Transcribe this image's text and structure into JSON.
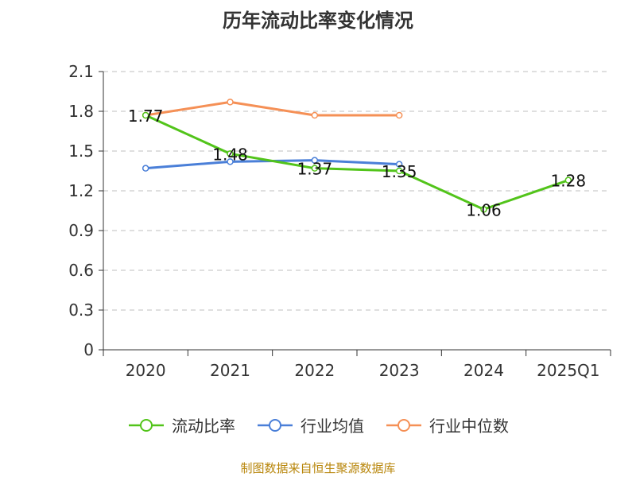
{
  "chart_data": {
    "type": "line",
    "title": "历年流动比率变化情况",
    "categories": [
      "2020",
      "2021",
      "2022",
      "2023",
      "2024",
      "2025Q1"
    ],
    "ylim": [
      0,
      2.1
    ],
    "yticks": [
      "0",
      "0.3",
      "0.6",
      "0.9",
      "1.2",
      "1.5",
      "1.8",
      "2.1"
    ],
    "grid": true,
    "legend_position": "bottom",
    "series": [
      {
        "name": "流动比率",
        "color": "#52c41a",
        "values": [
          1.77,
          1.48,
          1.37,
          1.35,
          1.06,
          1.28
        ],
        "labels": [
          "1.77",
          "1.48",
          "1.37",
          "1.35",
          "1.06",
          "1.28"
        ]
      },
      {
        "name": "行业均值",
        "color": "#4a7fd8",
        "values": [
          1.37,
          1.42,
          1.43,
          1.4,
          null,
          null
        ]
      },
      {
        "name": "行业中位数",
        "color": "#f59056",
        "values": [
          1.77,
          1.87,
          1.77,
          1.77,
          null,
          null
        ]
      }
    ]
  },
  "source": "制图数据来自恒生聚源数据库"
}
